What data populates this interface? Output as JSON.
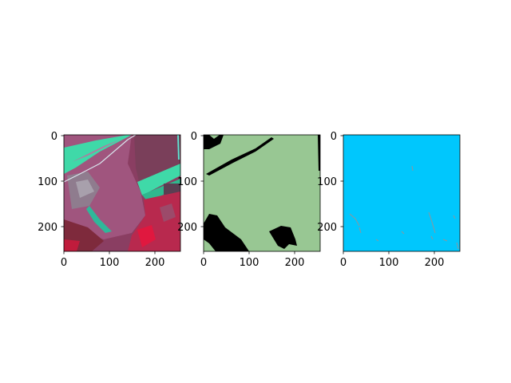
{
  "figure": {
    "panels": [
      {
        "name": "satellite-image",
        "xticks": [
          "0",
          "100",
          "200"
        ],
        "yticks": [
          "0",
          "100",
          "200"
        ],
        "colors": {
          "crop": "#a0557e",
          "vegetation": "#3fd9a8",
          "red_field": "#c81f3f",
          "dark": "#6b2f47"
        }
      },
      {
        "name": "black-mask",
        "xticks": [
          "0",
          "100",
          "200"
        ],
        "yticks": [
          "0",
          "100",
          "200"
        ],
        "colors": {
          "background": "#98c793",
          "mask": "#000000"
        }
      },
      {
        "name": "blue-mask",
        "xticks": [
          "0",
          "100",
          "200"
        ],
        "yticks": [
          "0",
          "100",
          "200"
        ],
        "colors": {
          "background": "#00c7fd",
          "speckle": "#b08a86"
        }
      }
    ]
  }
}
